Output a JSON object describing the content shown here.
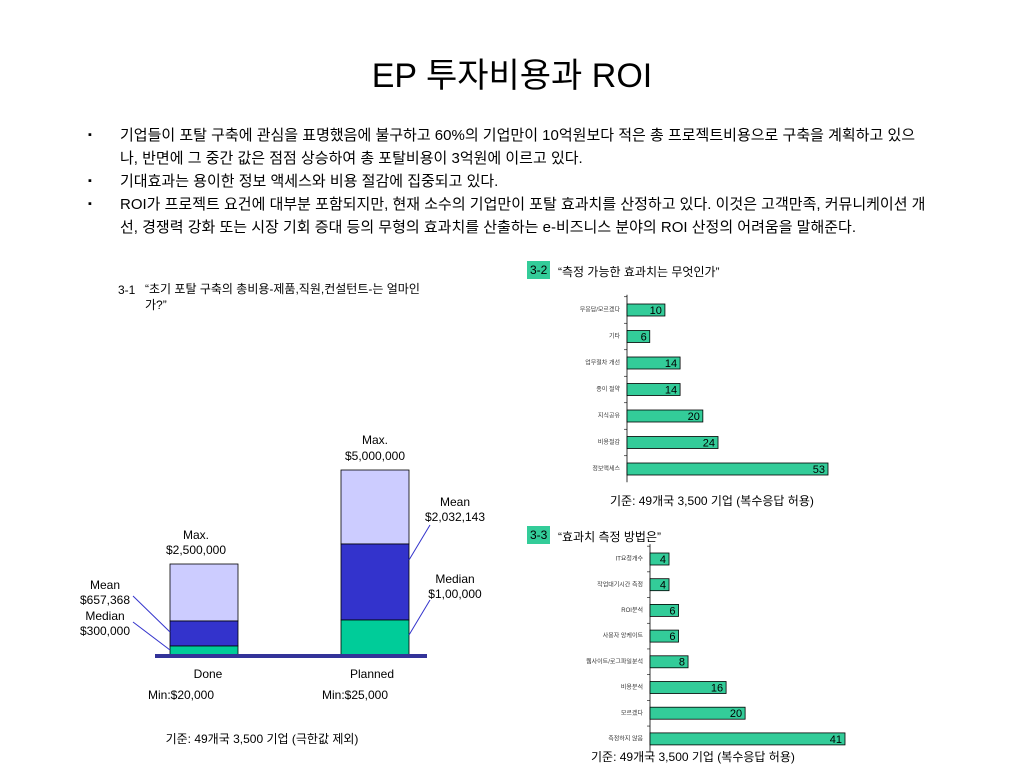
{
  "title": "EP 투자비용과 ROI",
  "bullets": [
    "기업들이 포탈 구축에 관심을 표명했음에 불구하고 60%의 기업만이 10억원보다 적은 총 프로젝트비용으로 구축을 계획하고 있으나, 반면에 그 중간 값은 점점 상승하여 총 포탈비용이 3억원에 이르고 있다.",
    "기대효과는 용이한 정보 액세스와 비용 절감에 집중되고 있다.",
    "ROI가 프로젝트 요건에 대부분 포함되지만, 현재 소수의 기업만이 포탈 효과치를 산정하고 있다. 이것은 고객만족, 커뮤니케이션 개선, 경쟁력 강화 또는 시장 기회 증대 등의 무형의 효과치를 산출하는 e-비즈니스 분야의 ROI 산정의 어려움을 말해준다."
  ],
  "figure_3_1": {
    "label": "3-1",
    "caption": "“초기 포탈 구축의 총비용-제품,직원,컨설턴트-는 얼마인가?”",
    "bars": [
      {
        "name": "Done",
        "max": [
          "Max.",
          "$2,500,000"
        ],
        "mean": [
          "Mean",
          "$657,368"
        ],
        "median": [
          "Median",
          "$300,000"
        ],
        "min": "Min:$20,000"
      },
      {
        "name": "Planned",
        "max": [
          "Max.",
          "$5,000,000"
        ],
        "mean": [
          "Mean",
          "$2,032,143"
        ],
        "median": [
          "Median",
          "$1,00,000"
        ],
        "min": "Min:$25,000"
      }
    ],
    "note": "기준: 49개국 3,500 기업 (극한값 제외)"
  },
  "chart_data": [
    {
      "type": "bar",
      "orientation": "horizontal",
      "label": "3-2",
      "title": "“측정 가능한 효과치는 무엇인가”",
      "categories": [
        "무응답/모르겠다",
        "기타",
        "업무절차 개선",
        "종이 절약",
        "지식공유",
        "비용절감",
        "정보액세스"
      ],
      "values": [
        10,
        6,
        14,
        14,
        20,
        24,
        53
      ],
      "color": "#33cc99",
      "note": "기준: 49개국 3,500 기업 (복수응답 허용)"
    },
    {
      "type": "bar",
      "orientation": "horizontal",
      "label": "3-3",
      "title": "“효과치 측정 방법은”",
      "categories": [
        "IT요청개수",
        "작업대기시간 측정",
        "ROI분석",
        "사용자 앙케이트",
        "웹사이트/로그파일분석",
        "비용분석",
        "모르겠다",
        "측정하지 않음"
      ],
      "values": [
        4,
        4,
        6,
        6,
        8,
        16,
        20,
        41
      ],
      "color": "#33cc99",
      "note": "기준: 49개국 3,500 기업 (복수응답 허용)"
    }
  ]
}
